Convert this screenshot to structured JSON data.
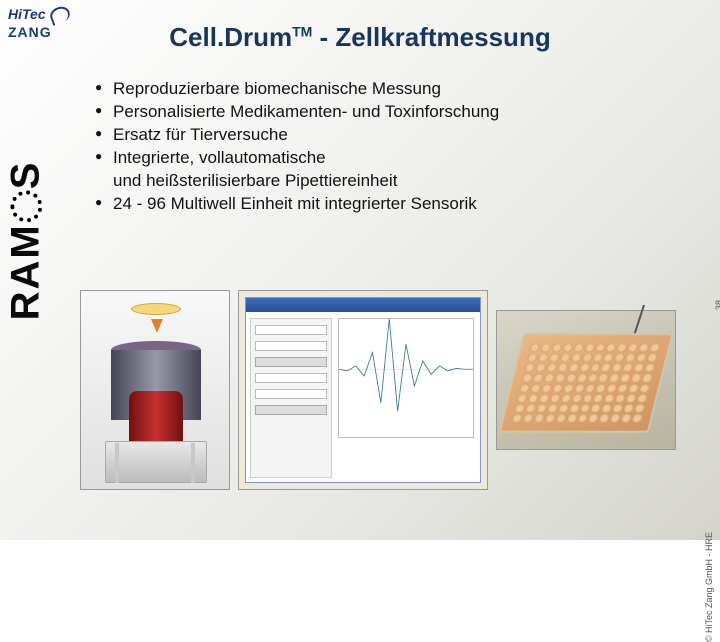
{
  "logo": {
    "line1": "HiTec",
    "line2": "ZANG"
  },
  "sidebar_brand": "RAMOS",
  "title": {
    "product": "Cell.Drum",
    "tm": "TM",
    "suffix": " - Zellkraftmessung"
  },
  "title_color": "#17365d",
  "bullets": [
    "Reproduzierbare biomechanische Messung",
    "Personalisierte Medikamenten- und Toxinforschung",
    "Ersatz für Tierversuche",
    "Integrierte, vollautomatische",
    "24 - 96 Multiwell Einheit mit integrierter Sensorik"
  ],
  "bullet_continuation_after_3": "und heißsterilisierbare Pipettiereinheit",
  "bullet_fontsize": 17,
  "images": {
    "panel1": {
      "desc": "cylinder-device-render",
      "plate_color": "#f5d77a",
      "body_color": "#667788",
      "insert_color": "#c83030"
    },
    "panel2": {
      "desc": "software-waveform-screenshot",
      "window_chrome": "#2a4e90",
      "waveform_color": "#2a7a8a",
      "waveform_points": [
        0,
        -2,
        4,
        -8,
        20,
        -40,
        60,
        -50,
        30,
        -20,
        10,
        -6,
        4,
        -2,
        1,
        0,
        0
      ],
      "axis_range_y": [
        -60,
        60
      ]
    },
    "panel3": {
      "desc": "96-well-plate-render",
      "rows": 8,
      "cols": 12,
      "plate_color": "#eab786",
      "well_color": "#b97a44"
    }
  },
  "copyright": "© HiTec Zang GmbH - HRE",
  "page_number": "38",
  "background_gradient": [
    "#ffffff",
    "#d4d4cc"
  ]
}
